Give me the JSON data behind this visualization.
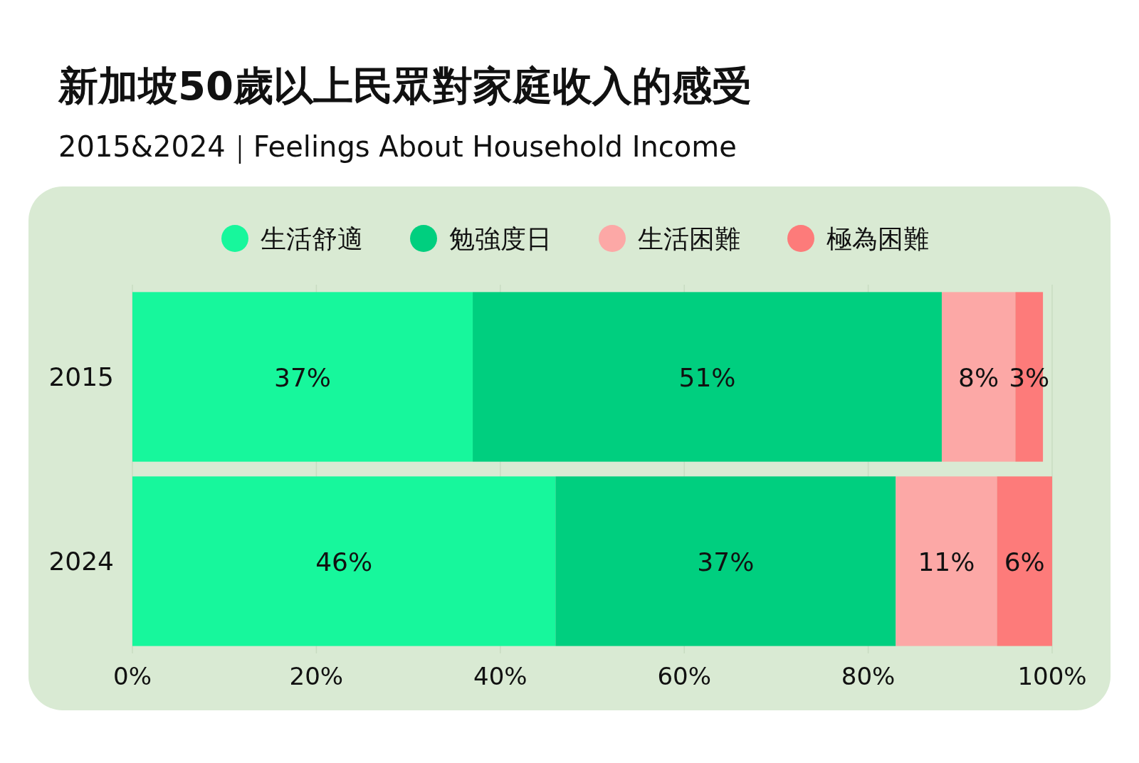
{
  "chart_data": {
    "type": "bar",
    "orientation": "horizontal",
    "stacked": true,
    "title": "新加坡50歲以上民眾對家庭收入的感受",
    "subtitle": "2015&2024｜Feelings About Household Income",
    "categories": [
      "2015",
      "2024"
    ],
    "series": [
      {
        "name": "生活舒適",
        "color": "#17f79c",
        "values": [
          37,
          46
        ],
        "value_labels": [
          "37%",
          "46%"
        ]
      },
      {
        "name": "勉強度日",
        "color": "#00cf7f",
        "values": [
          51,
          37
        ],
        "value_labels": [
          "51%",
          "37%"
        ]
      },
      {
        "name": "生活困難",
        "color": "#fca8a6",
        "values": [
          8,
          11
        ],
        "value_labels": [
          "8%",
          "11%"
        ]
      },
      {
        "name": "極為困難",
        "color": "#fd7b7a",
        "values": [
          3,
          6
        ],
        "value_labels": [
          "3%",
          "6%"
        ]
      }
    ],
    "xlim": [
      0,
      100
    ],
    "xticks": [
      {
        "value": 0,
        "label": "0%"
      },
      {
        "value": 20,
        "label": "20%"
      },
      {
        "value": 40,
        "label": "40%"
      },
      {
        "value": 60,
        "label": "60%"
      },
      {
        "value": 80,
        "label": "80%"
      },
      {
        "value": 100,
        "label": "100%"
      }
    ],
    "grid": "x",
    "legend": "top"
  }
}
